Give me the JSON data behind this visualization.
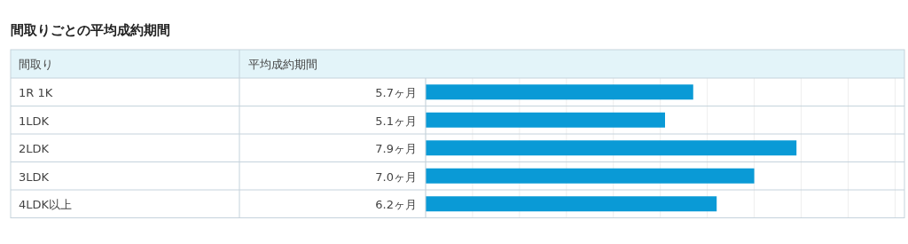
{
  "chart_data": {
    "type": "bar",
    "orientation": "horizontal",
    "title": "間取りごとの平均成約期間",
    "ylabel": "間取り",
    "xlabel": "平均成約期間",
    "categories": [
      "1R 1K",
      "1LDK",
      "2LDK",
      "3LDK",
      "4LDK以上"
    ],
    "values": [
      5.7,
      5.1,
      7.9,
      7.0,
      6.2
    ],
    "value_labels": [
      "5.7ヶ月",
      "5.1ヶ月",
      "7.9ヶ月",
      "7.0ヶ月",
      "6.2ヶ月"
    ],
    "color": "#0a9ad6",
    "xlim": [
      0,
      10.2
    ],
    "xticks": [
      {
        "value": 0,
        "label": null
      },
      {
        "value": 1,
        "label": null
      },
      {
        "value": 2,
        "label": null
      },
      {
        "value": 3,
        "label": null
      },
      {
        "value": 4,
        "label": null
      },
      {
        "value": 5,
        "label": null
      },
      {
        "value": 6,
        "label": null
      },
      {
        "value": 7,
        "label": null
      },
      {
        "value": 8,
        "label": null
      },
      {
        "value": 9,
        "label": null
      },
      {
        "value": 10,
        "label": null
      }
    ],
    "grid": "x"
  }
}
